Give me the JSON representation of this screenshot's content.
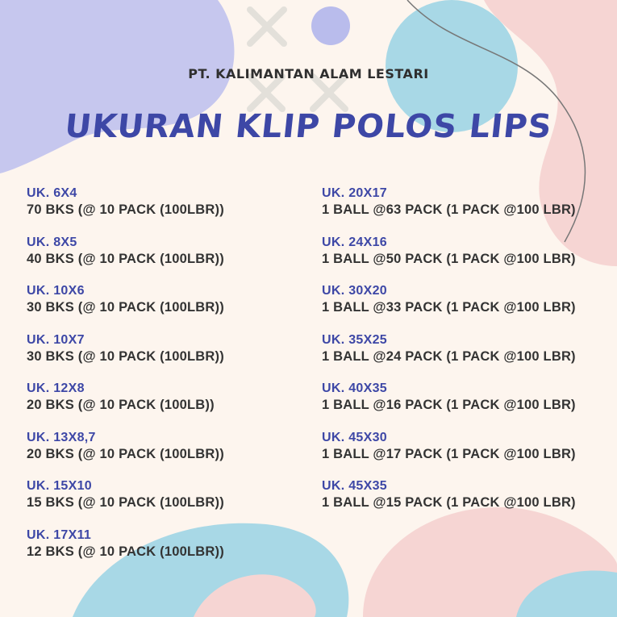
{
  "header": {
    "company": "PT. KALIMANTAN ALAM LESTARI",
    "title": "UKURAN KLIP POLOS LIPS"
  },
  "colors": {
    "accent": "#3d47a6",
    "background": "#fdf5ee",
    "lavender": "#c6c7ee",
    "sky": "#a8d8e6",
    "pink": "#f6d5d3"
  },
  "left_items": [
    {
      "size": "UK. 6X4",
      "detail": "70 BKS (@ 10 PACK (100LBR))"
    },
    {
      "size": "UK. 8X5",
      "detail": "40 BKS (@ 10 PACK (100LBR))"
    },
    {
      "size": "UK. 10X6",
      "detail": "30 BKS (@ 10 PACK (100LBR))"
    },
    {
      "size": "UK. 10X7",
      "detail": "30 BKS (@ 10 PACK (100LBR))"
    },
    {
      "size": "UK. 12X8",
      "detail": "20 BKS (@ 10 PACK (100LB))"
    },
    {
      "size": "UK. 13X8,7",
      "detail": "20 BKS (@ 10 PACK (100LBR))"
    },
    {
      "size": "UK. 15X10",
      "detail": "15 BKS (@ 10 PACK (100LBR))"
    },
    {
      "size": "UK. 17X11",
      "detail": "12 BKS (@ 10 PACK (100LBR))"
    }
  ],
  "right_items": [
    {
      "size": "UK. 20X17",
      "detail": "1 BALL @63 PACK (1 PACK @100 LBR)"
    },
    {
      "size": "UK. 24X16",
      "detail": "1 BALL @50 PACK (1 PACK @100 LBR)"
    },
    {
      "size": "UK. 30X20",
      "detail": "1 BALL @33 PACK (1 PACK @100 LBR)"
    },
    {
      "size": "UK. 35X25",
      "detail": "1 BALL @24 PACK (1 PACK @100 LBR)"
    },
    {
      "size": "UK. 40X35",
      "detail": "1 BALL @16 PACK (1 PACK @100 LBR)"
    },
    {
      "size": "UK. 45X30",
      "detail": "1 BALL @17 PACK (1 PACK @100 LBR)"
    },
    {
      "size": "UK. 45X35",
      "detail": "1 BALL @15 PACK (1 PACK @100 LBR)"
    }
  ]
}
